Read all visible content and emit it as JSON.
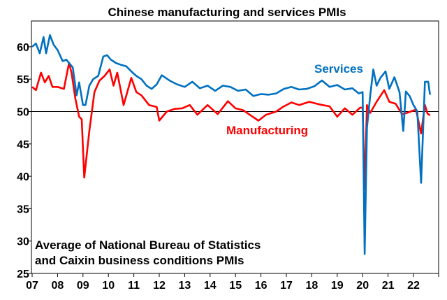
{
  "chart_data": {
    "type": "line",
    "title": "Chinese manufacturing and services PMIs",
    "xlabel": "",
    "ylabel": "",
    "xlim": [
      2007,
      2023
    ],
    "ylim": [
      25,
      64
    ],
    "yticks": [
      25,
      30,
      35,
      40,
      45,
      50,
      55,
      60
    ],
    "xticks": [
      "07",
      "08",
      "09",
      "10",
      "11",
      "12",
      "13",
      "14",
      "15",
      "16",
      "17",
      "18",
      "19",
      "20",
      "21",
      "22"
    ],
    "reference_line": 50,
    "grid": false,
    "annotation": [
      "Average of National Bureau of Statistics",
      "and Caixin business conditions PMIs"
    ],
    "series": [
      {
        "name": "Services",
        "color": "#0070C0",
        "x": [
          2007.0,
          2007.15,
          2007.3,
          2007.45,
          2007.55,
          2007.7,
          2007.85,
          2008.0,
          2008.2,
          2008.35,
          2008.6,
          2008.75,
          2008.85,
          2009.0,
          2009.1,
          2009.25,
          2009.4,
          2009.6,
          2009.8,
          2009.95,
          2010.1,
          2010.3,
          2010.5,
          2010.7,
          2010.9,
          2011.1,
          2011.3,
          2011.5,
          2011.7,
          2011.9,
          2012.1,
          2012.4,
          2012.7,
          2013.0,
          2013.3,
          2013.6,
          2013.9,
          2014.2,
          2014.5,
          2014.8,
          2015.1,
          2015.4,
          2015.7,
          2016.0,
          2016.3,
          2016.6,
          2016.9,
          2017.2,
          2017.5,
          2017.8,
          2018.1,
          2018.4,
          2018.7,
          2019.0,
          2019.3,
          2019.6,
          2019.85,
          2020.0,
          2020.08,
          2020.17,
          2020.3,
          2020.42,
          2020.55,
          2020.7,
          2020.9,
          2021.05,
          2021.25,
          2021.45,
          2021.6,
          2021.7,
          2021.85,
          2022.0,
          2022.15,
          2022.3,
          2022.45,
          2022.58,
          2022.65
        ],
        "values": [
          60,
          60.5,
          59,
          61.5,
          59,
          61.8,
          60.3,
          59.5,
          57.8,
          58,
          56.8,
          52.5,
          54.5,
          51,
          51,
          54,
          55,
          55.5,
          58.5,
          58.7,
          58,
          57.5,
          57.2,
          57,
          56.2,
          55.5,
          55,
          54,
          53.5,
          54.2,
          55.6,
          54.8,
          54.2,
          53.8,
          54.6,
          53.6,
          54,
          53.2,
          54,
          53.8,
          53.2,
          53.4,
          52.4,
          52.7,
          52.6,
          52.8,
          53.5,
          53.8,
          53.4,
          53.5,
          53.9,
          54.8,
          53.8,
          54.1,
          53.4,
          53.6,
          52.8,
          53,
          28,
          47.5,
          52.5,
          56.5,
          54,
          55.2,
          56.2,
          53.5,
          55.3,
          53,
          47,
          53.1,
          52.4,
          51,
          50,
          39,
          54.6,
          54.6,
          52.6
        ]
      },
      {
        "name": "Manufacturing",
        "color": "#FF0000",
        "x": [
          2007.0,
          2007.15,
          2007.35,
          2007.5,
          2007.65,
          2007.8,
          2008.0,
          2008.25,
          2008.45,
          2008.55,
          2008.7,
          2008.85,
          2008.95,
          2009.05,
          2009.25,
          2009.45,
          2009.65,
          2009.85,
          2010.05,
          2010.2,
          2010.35,
          2010.6,
          2010.9,
          2011.1,
          2011.3,
          2011.6,
          2011.9,
          2012.0,
          2012.3,
          2012.6,
          2012.9,
          2013.2,
          2013.5,
          2013.9,
          2014.3,
          2014.7,
          2015.0,
          2015.3,
          2015.6,
          2015.9,
          2016.2,
          2016.6,
          2016.9,
          2017.2,
          2017.5,
          2017.9,
          2018.3,
          2018.7,
          2019.0,
          2019.3,
          2019.6,
          2019.9,
          2020.0,
          2020.08,
          2020.17,
          2020.3,
          2020.55,
          2020.85,
          2021.05,
          2021.3,
          2021.55,
          2021.75,
          2021.95,
          2022.1,
          2022.3,
          2022.45,
          2022.55,
          2022.65
        ],
        "values": [
          53.8,
          53.3,
          56,
          54.5,
          55.5,
          53.8,
          53.8,
          53.5,
          57.5,
          56,
          52,
          49.2,
          48.8,
          39.8,
          47,
          53,
          54.8,
          55.5,
          56.5,
          54,
          56,
          51,
          55.2,
          53,
          52.5,
          51,
          50.7,
          48.6,
          50,
          50.4,
          50.5,
          51,
          49.5,
          51,
          49.6,
          51.6,
          50.5,
          50.2,
          49.4,
          48.6,
          49.5,
          50,
          50.8,
          51.4,
          51,
          51.5,
          51.1,
          50.8,
          49.2,
          50.5,
          49.5,
          50.6,
          50.6,
          38,
          51,
          49.8,
          51.5,
          53.3,
          51.5,
          51.2,
          49.6,
          49.8,
          50.1,
          50.3,
          46.6,
          51,
          49.7,
          49.4
        ]
      }
    ]
  }
}
